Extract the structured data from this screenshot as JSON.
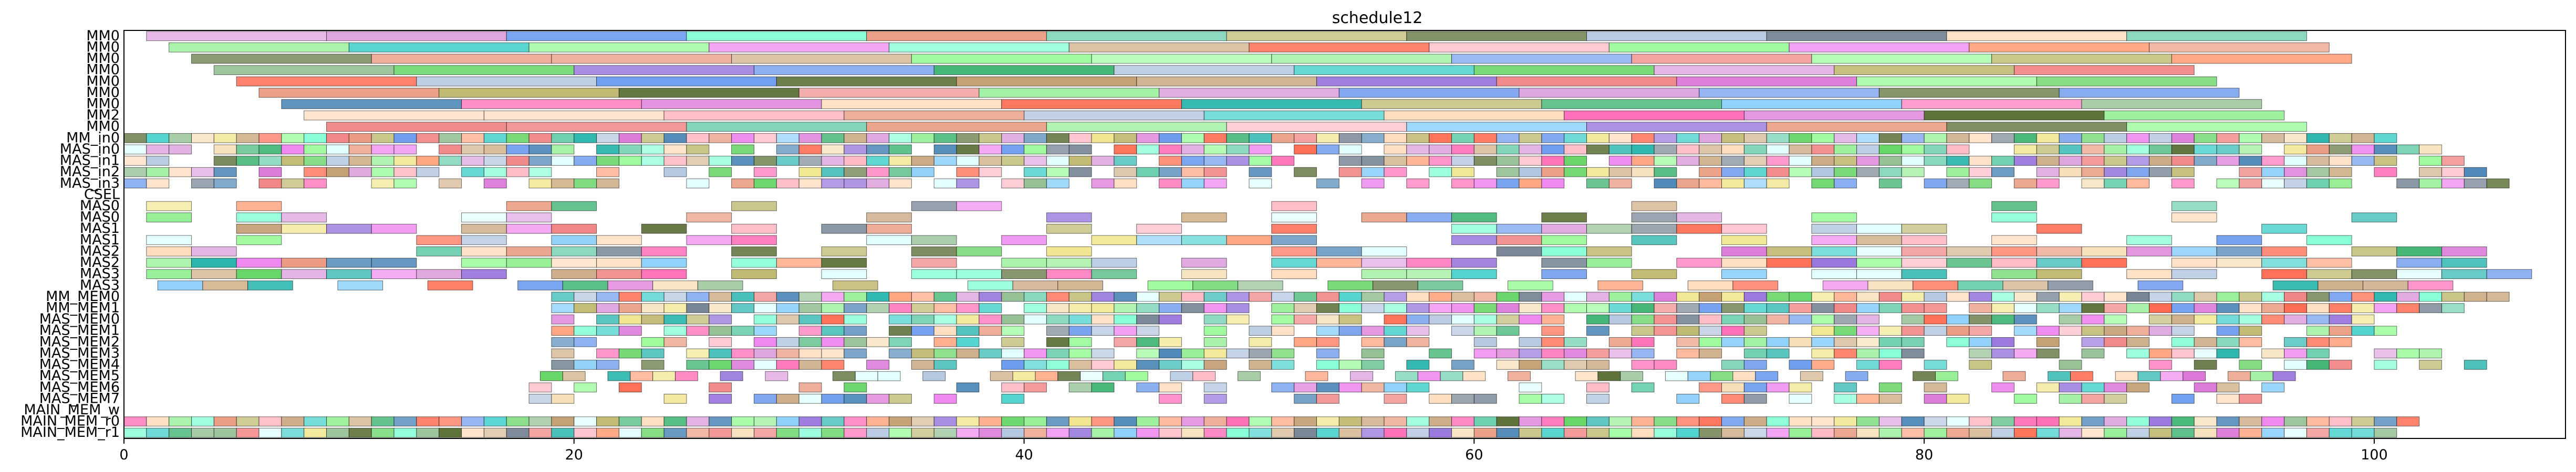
{
  "chart_data": {
    "type": "gantt",
    "title": "schedule12",
    "xlabel": "",
    "ylabel": "",
    "xlim": [
      0,
      108.5
    ],
    "x_ticks": [
      0,
      20,
      40,
      60,
      80,
      100
    ],
    "x_tick_labels": [
      "0",
      "20",
      "40",
      "60",
      "80",
      "100"
    ],
    "rows": [
      {
        "label": "MM0",
        "start": 1.0,
        "dur": 8.0,
        "gap": 0.0,
        "end": 97.0
      },
      {
        "label": "MM0",
        "start": 2.0,
        "dur": 8.0,
        "gap": 0.0,
        "end": 98.0
      },
      {
        "label": "MM0",
        "start": 3.0,
        "dur": 8.0,
        "gap": 0.0,
        "end": 99.0
      },
      {
        "label": "MM0",
        "start": 4.0,
        "dur": 8.0,
        "gap": 0.0,
        "end": 92.0
      },
      {
        "label": "MM0",
        "start": 5.0,
        "dur": 8.0,
        "gap": 0.0,
        "end": 93.0
      },
      {
        "label": "MM0",
        "start": 6.0,
        "dur": 8.0,
        "gap": 0.0,
        "end": 94.0
      },
      {
        "label": "MM0",
        "start": 7.0,
        "dur": 8.0,
        "gap": 0.0,
        "end": 95.0
      },
      {
        "label": "MM2",
        "start": 8.0,
        "dur": 8.0,
        "gap": 0.0,
        "end": 96.0
      },
      {
        "label": "MM0",
        "start": 9.0,
        "dur": 8.0,
        "gap": 0.0,
        "end": 97.0
      },
      {
        "label": "MM_in0",
        "start": 0.0,
        "dur": 1.0,
        "gap": 0.0,
        "end": 101.0
      },
      {
        "label": "MAS_in0",
        "start": 0.0,
        "dur": 1.0,
        "gap": 0.1,
        "end": 103.0
      },
      {
        "label": "MAS_in1",
        "start": 0.0,
        "dur": 1.0,
        "gap": 0.1,
        "end": 104.0
      },
      {
        "label": "MAS_in2",
        "start": 0.0,
        "dur": 1.0,
        "gap": 0.3,
        "end": 105.0
      },
      {
        "label": "MAS_in3",
        "start": 0.0,
        "dur": 1.0,
        "gap": 0.4,
        "end": 106.5
      },
      {
        "label": "CSEL",
        "start": 0.0,
        "dur": 0.0,
        "gap": 0.0,
        "end": 0.0
      },
      {
        "label": "MAS0",
        "start": 1.0,
        "dur": 2.0,
        "gap": 2.0,
        "end": 106.0
      },
      {
        "label": "MAS0",
        "start": 1.0,
        "dur": 2.0,
        "gap": 1.2,
        "end": 103.0
      },
      {
        "label": "MAS1",
        "start": 1.0,
        "dur": 2.0,
        "gap": 1.0,
        "end": 101.0
      },
      {
        "label": "MAS1",
        "start": 1.0,
        "dur": 2.0,
        "gap": 0.8,
        "end": 100.0
      },
      {
        "label": "MAS2",
        "start": 1.0,
        "dur": 2.0,
        "gap": 0.6,
        "end": 107.0
      },
      {
        "label": "MAS2",
        "start": 1.0,
        "dur": 2.0,
        "gap": 0.4,
        "end": 105.0
      },
      {
        "label": "MAS3",
        "start": 1.0,
        "dur": 2.0,
        "gap": 0.5,
        "end": 108.0
      },
      {
        "label": "MAS3",
        "start": 1.5,
        "dur": 2.0,
        "gap": 0.6,
        "end": 104.0
      },
      {
        "label": "MM_MEM0",
        "start": 19.0,
        "dur": 1.0,
        "gap": 0.0,
        "end": 106.0
      },
      {
        "label": "MM_MEM1",
        "start": 19.0,
        "dur": 1.0,
        "gap": 0.1,
        "end": 104.0
      },
      {
        "label": "MAS_MEM0",
        "start": 19.0,
        "dur": 1.0,
        "gap": 0.2,
        "end": 100.0
      },
      {
        "label": "MAS_MEM1",
        "start": 19.0,
        "dur": 1.0,
        "gap": 0.3,
        "end": 101.0
      },
      {
        "label": "MAS_MEM2",
        "start": 19.0,
        "dur": 1.0,
        "gap": 0.4,
        "end": 99.0
      },
      {
        "label": "MAS_MEM3",
        "start": 19.0,
        "dur": 1.0,
        "gap": 0.3,
        "end": 103.0
      },
      {
        "label": "MAS_MEM4",
        "start": 19.0,
        "dur": 1.0,
        "gap": 0.5,
        "end": 105.0
      },
      {
        "label": "MAS_MEM5",
        "start": 18.5,
        "dur": 1.0,
        "gap": 0.6,
        "end": 98.0
      },
      {
        "label": "MAS_MEM6",
        "start": 18.0,
        "dur": 1.0,
        "gap": 0.7,
        "end": 96.0
      },
      {
        "label": "MAS_MEM7",
        "start": 18.0,
        "dur": 1.0,
        "gap": 0.8,
        "end": 95.0
      },
      {
        "label": "MAIN_MEM_w",
        "start": 0.0,
        "dur": 0.0,
        "gap": 0.0,
        "end": 0.0
      },
      {
        "label": "MAIN_MEM_r0",
        "start": 0.0,
        "dur": 1.0,
        "gap": 0.0,
        "end": 102.0
      },
      {
        "label": "MAIN_MEM_r1",
        "start": 0.0,
        "dur": 1.0,
        "gap": 0.0,
        "end": 101.0
      }
    ],
    "palette": [
      "#5fd35f",
      "#f0e68c",
      "#c19a6b",
      "#ffdab9",
      "#87cefa",
      "#7fffd4",
      "#b0c4de",
      "#da70d6",
      "#90ee90",
      "#f08080",
      "#4682b4",
      "#ff69b4",
      "#d2b48c",
      "#98fb98",
      "#9370db",
      "#3cb371",
      "#20b2aa",
      "#ffa07a",
      "#556b2f",
      "#8fbc8f",
      "#dda0dd",
      "#6495ed",
      "#e9967a",
      "#66cdaa",
      "#ffb6c1",
      "#bdb76b",
      "#ee82ee",
      "#708090",
      "#f5deb3",
      "#48d1cc",
      "#e0ffff",
      "#ff6347"
    ],
    "grid": false,
    "legend": "none"
  }
}
